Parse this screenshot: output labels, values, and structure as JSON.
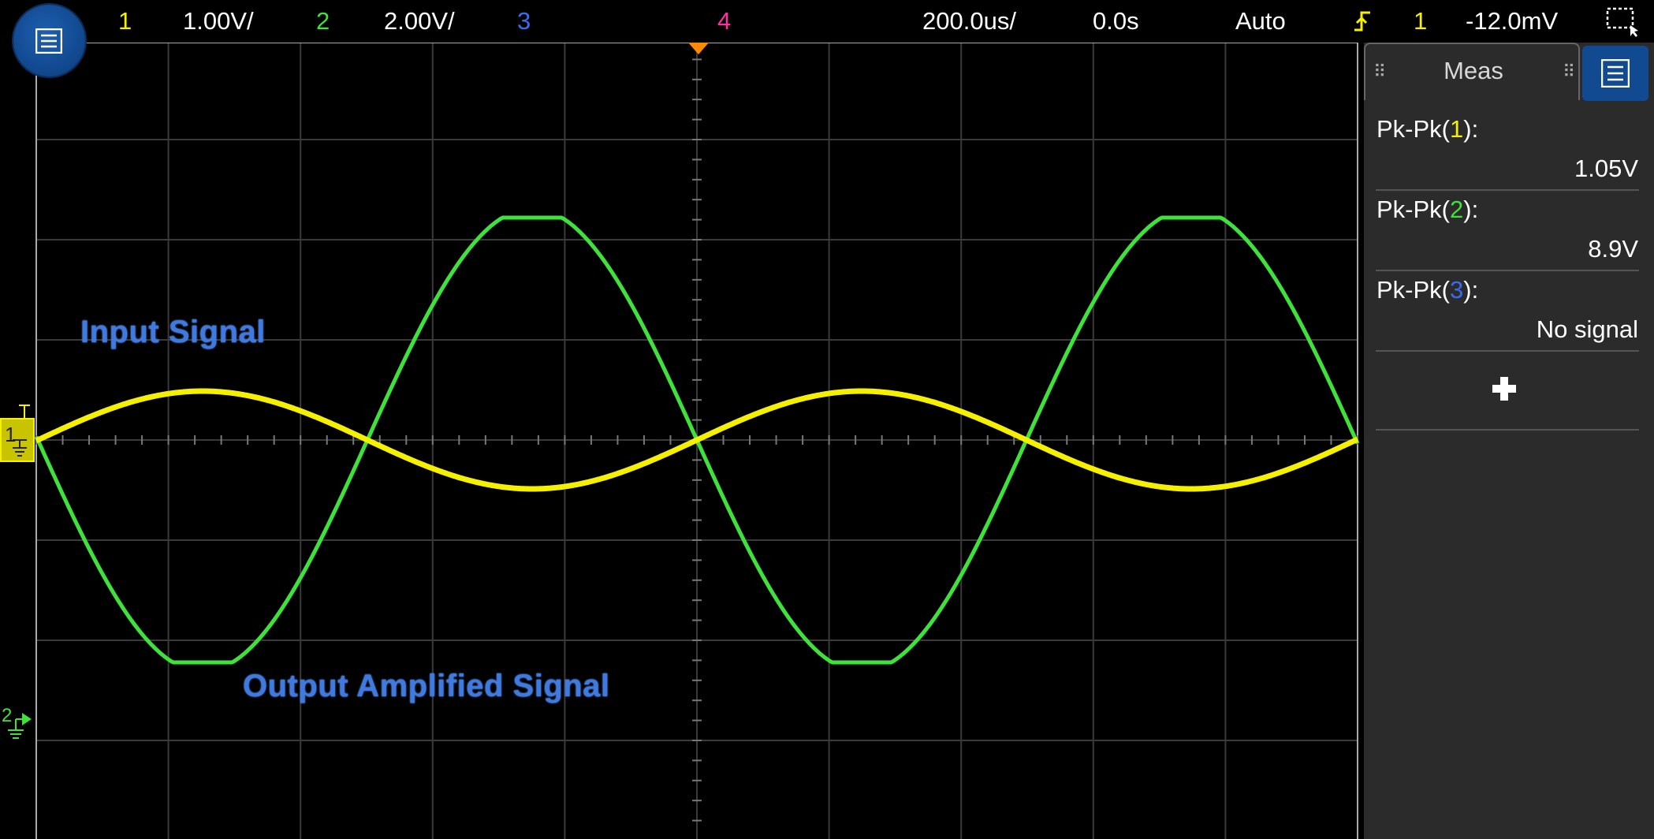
{
  "topbar": {
    "ch1": {
      "label": "1",
      "scale": "1.00V/"
    },
    "ch2": {
      "label": "2",
      "scale": "2.00V/"
    },
    "ch3": {
      "label": "3"
    },
    "ch4": {
      "label": "4"
    },
    "timebase": "200.0us/",
    "delay": "0.0s",
    "trigger_mode": "Auto",
    "trigger_source": "1",
    "trigger_level": "-12.0mV"
  },
  "annotations": {
    "input": "Input Signal",
    "output": "Output Amplified Signal"
  },
  "markers": {
    "ch1_ground": "1",
    "ch2_ground": "2"
  },
  "meas": {
    "title": "Meas",
    "items": [
      {
        "prefix": "Pk-Pk(",
        "channel": "1",
        "suffix": "):",
        "value": "1.05V"
      },
      {
        "prefix": "Pk-Pk(",
        "channel": "2",
        "suffix": "):",
        "value": "8.9V"
      },
      {
        "prefix": "Pk-Pk(",
        "channel": "3",
        "suffix": "):",
        "value": "No signal"
      }
    ]
  },
  "colors": {
    "ch1": "#f4f000",
    "ch2": "#3ee23a",
    "ch3": "#3b6cf0",
    "ch4": "#ff2fa0",
    "trigger_marker": "#ff8a00",
    "menu_button": "#124a91"
  },
  "icons": {
    "menu": "menu-icon",
    "trigger_edge": "rising-edge-icon",
    "zoom_select": "zoom-select-icon",
    "add": "plus-icon"
  }
}
